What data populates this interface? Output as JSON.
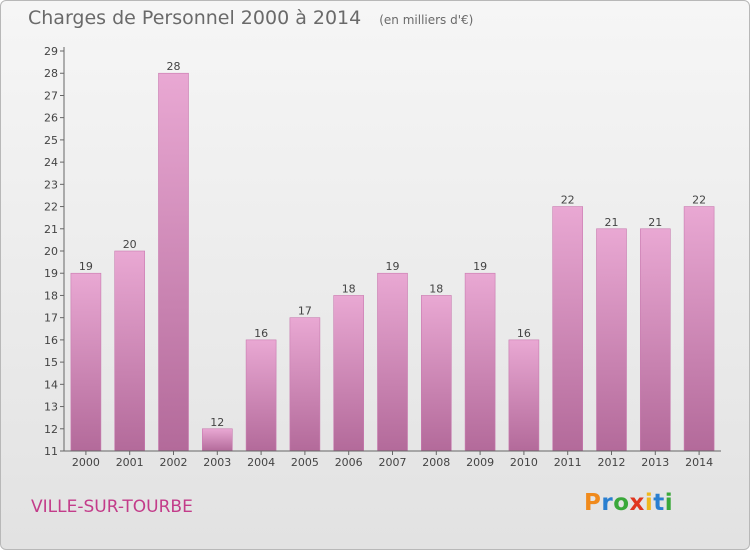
{
  "title": "Charges de Personnel 2000 à 2014",
  "subtitle": "(en milliers d'€)",
  "location": "VILLE-SUR-TOURBE",
  "logo": {
    "letters": [
      "P",
      "r",
      "o",
      "x",
      "i",
      "t",
      "i"
    ],
    "colors": [
      "#f08a1c",
      "#2a7fd0",
      "#3aa83a",
      "#e0361f",
      "#f0b81c",
      "#2a7fd0",
      "#3aa83a"
    ]
  },
  "colors": {
    "bar": "#d88fbf",
    "accent": "#c33c8a",
    "text": "#6a6a6a"
  },
  "chart_data": {
    "type": "bar",
    "categories": [
      "2000",
      "2001",
      "2002",
      "2003",
      "2004",
      "2005",
      "2006",
      "2007",
      "2008",
      "2009",
      "2010",
      "2011",
      "2012",
      "2013",
      "2014"
    ],
    "values": [
      19,
      20,
      28,
      12,
      16,
      17,
      18,
      19,
      18,
      19,
      16,
      22,
      21,
      21,
      22
    ],
    "ylim": [
      11,
      29
    ],
    "yticks": [
      11,
      12,
      13,
      14,
      15,
      16,
      17,
      18,
      19,
      20,
      21,
      22,
      23,
      24,
      25,
      26,
      27,
      28,
      29
    ],
    "grid": false,
    "data_labels": true
  }
}
